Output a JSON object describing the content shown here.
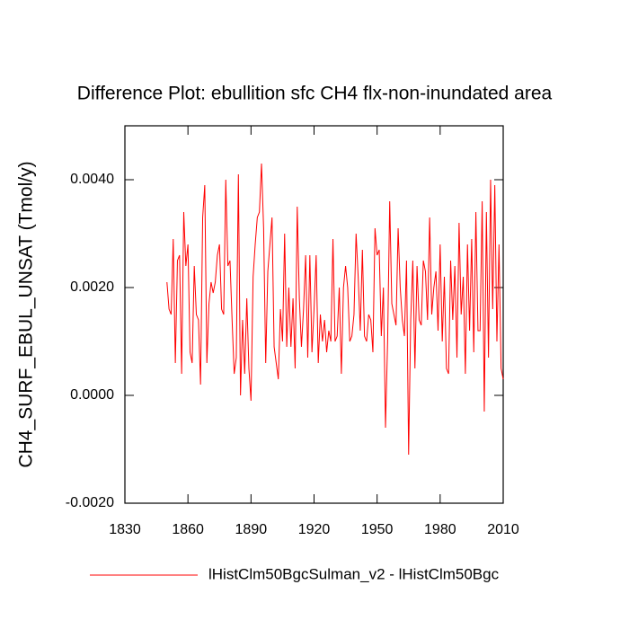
{
  "chart_data": {
    "type": "line",
    "title": "Difference Plot: ebullition sfc CH4 flx-non-inundated area",
    "y_label": "CH4_SURF_EBUL_UNSAT  (Tmol/y)",
    "x": [
      1850,
      1851,
      1852,
      1853,
      1854,
      1855,
      1856,
      1857,
      1858,
      1859,
      1860,
      1861,
      1862,
      1863,
      1864,
      1865,
      1866,
      1867,
      1868,
      1869,
      1870,
      1871,
      1872,
      1873,
      1874,
      1875,
      1876,
      1877,
      1878,
      1879,
      1880,
      1881,
      1882,
      1883,
      1884,
      1885,
      1886,
      1887,
      1888,
      1889,
      1890,
      1891,
      1892,
      1893,
      1894,
      1895,
      1896,
      1897,
      1898,
      1899,
      1900,
      1901,
      1902,
      1903,
      1904,
      1905,
      1906,
      1907,
      1908,
      1909,
      1910,
      1911,
      1912,
      1913,
      1914,
      1915,
      1916,
      1917,
      1918,
      1919,
      1920,
      1921,
      1922,
      1923,
      1924,
      1925,
      1926,
      1927,
      1928,
      1929,
      1930,
      1931,
      1932,
      1933,
      1934,
      1935,
      1936,
      1937,
      1938,
      1939,
      1940,
      1941,
      1942,
      1943,
      1944,
      1945,
      1946,
      1947,
      1948,
      1949,
      1950,
      1951,
      1952,
      1953,
      1954,
      1955,
      1956,
      1957,
      1958,
      1959,
      1960,
      1961,
      1962,
      1963,
      1964,
      1965,
      1966,
      1967,
      1968,
      1969,
      1970,
      1971,
      1972,
      1973,
      1974,
      1975,
      1976,
      1977,
      1978,
      1979,
      1980,
      1981,
      1982,
      1983,
      1984,
      1985,
      1986,
      1987,
      1988,
      1989,
      1990,
      1991,
      1992,
      1993,
      1994,
      1995,
      1996,
      1997,
      1998,
      1999,
      2000,
      2001,
      2002,
      2003,
      2004,
      2005,
      2006,
      2007,
      2008,
      2009,
      2010
    ],
    "series": [
      {
        "name": "lHistClm50BgcSulman_v2 - lHistClm50Bgc",
        "color": "#ff0000",
        "values": [
          0.0021,
          0.0016,
          0.0015,
          0.0029,
          0.0006,
          0.0025,
          0.0026,
          0.0004,
          0.0034,
          0.0024,
          0.0028,
          0.0008,
          0.0006,
          0.0024,
          0.0015,
          0.0014,
          0.0002,
          0.0033,
          0.0039,
          0.0006,
          0.0017,
          0.0021,
          0.0019,
          0.0021,
          0.0026,
          0.0028,
          0.0016,
          0.0015,
          0.004,
          0.0024,
          0.0025,
          0.0014,
          0.0004,
          0.0007,
          0.0041,
          0.0,
          0.0014,
          0.0004,
          0.0018,
          0.0005,
          -0.0001,
          0.0022,
          0.0028,
          0.0033,
          0.0034,
          0.0043,
          0.0031,
          0.0006,
          0.0023,
          0.0028,
          0.0033,
          0.0009,
          0.0006,
          0.0003,
          0.0016,
          0.001,
          0.003,
          0.0009,
          0.002,
          0.0009,
          0.0018,
          0.0005,
          0.0035,
          0.0018,
          0.0009,
          0.0016,
          0.0026,
          0.0007,
          0.0026,
          0.0008,
          0.0016,
          0.0026,
          0.0006,
          0.0015,
          0.001,
          0.0014,
          0.0008,
          0.0012,
          0.001,
          0.0029,
          0.001,
          0.0011,
          0.002,
          0.0004,
          0.002,
          0.0024,
          0.002,
          0.001,
          0.0011,
          0.0015,
          0.003,
          0.0022,
          0.0012,
          0.0027,
          0.0011,
          0.001,
          0.0015,
          0.0014,
          0.0008,
          0.0031,
          0.0026,
          0.0027,
          0.0011,
          0.002,
          -0.0006,
          0.001,
          0.0036,
          0.0017,
          0.0015,
          0.0013,
          0.0031,
          0.002,
          0.0014,
          0.0011,
          0.0025,
          -0.0011,
          0.0014,
          0.0025,
          0.0005,
          0.0024,
          0.0014,
          0.0013,
          0.0025,
          0.0023,
          0.0014,
          0.0033,
          0.0015,
          0.002,
          0.0023,
          0.0012,
          0.0028,
          0.001,
          0.0022,
          0.0005,
          0.0004,
          0.0025,
          0.0014,
          0.0024,
          0.0007,
          0.0032,
          0.0015,
          0.0022,
          0.0004,
          0.0028,
          0.0012,
          0.0029,
          0.0008,
          0.0034,
          0.0012,
          0.0012,
          0.0036,
          -0.0003,
          0.0034,
          0.0007,
          0.004,
          0.0016,
          0.0039,
          0.001,
          0.0028,
          0.0005,
          0.0003
        ]
      }
    ],
    "xlim": [
      1830,
      2010
    ],
    "xticks": [
      1830,
      1860,
      1890,
      1920,
      1950,
      1980,
      2010
    ],
    "ylim": [
      -0.002,
      0.005
    ],
    "yticks": [
      {
        "value": -0.002,
        "label": "-0.0020"
      },
      {
        "value": 0,
        "label": "0.0000"
      },
      {
        "value": 0.002,
        "label": "0.0020"
      },
      {
        "value": 0.004,
        "label": "0.0040"
      }
    ]
  }
}
